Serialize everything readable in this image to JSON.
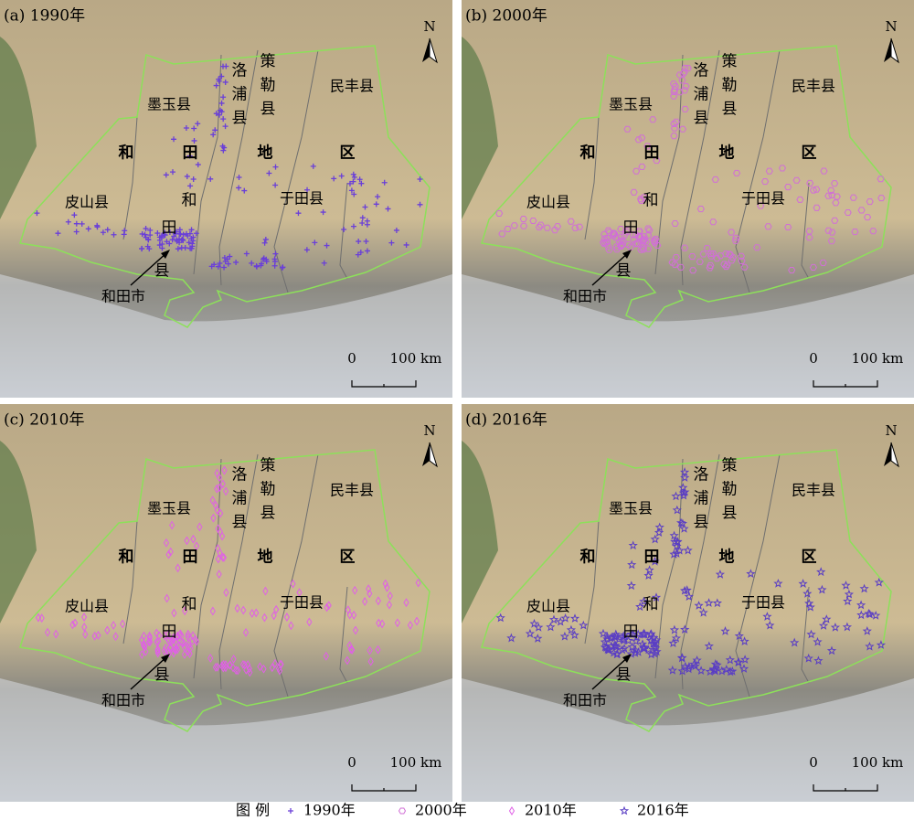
{
  "panels": [
    {
      "label": "(a) 1990年"
    },
    {
      "label": "(b) 2000年"
    },
    {
      "label": "(c) 2010年"
    },
    {
      "label": "(d) 2016年"
    }
  ],
  "map": {
    "north": "N",
    "scale_zero": "0",
    "scale_length": "100 km",
    "moyu": "墨玉县",
    "luopu": [
      "洛",
      "浦",
      "县"
    ],
    "cele": [
      "策",
      "勒",
      "县"
    ],
    "minfeng": "民丰县",
    "region": [
      "和",
      "田",
      "地",
      "区"
    ],
    "pishan": "皮山县",
    "yutian": "于田县",
    "hetian_county": [
      "和",
      "田",
      "县"
    ],
    "hetian_city": "和田市"
  },
  "legend": {
    "title": "图  例",
    "items": [
      "1990年",
      "2000年",
      "2010年",
      "2016年"
    ]
  }
}
